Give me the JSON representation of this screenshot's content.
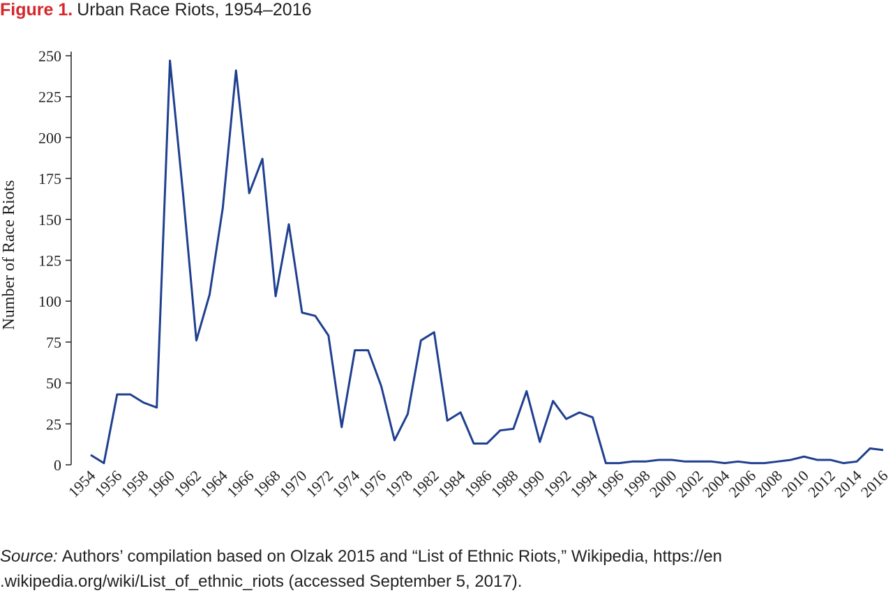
{
  "chart_data": {
    "type": "line",
    "title_label": "Figure 1.",
    "title": "Urban Race Riots, 1954–2016",
    "y_label": "Number of Race Riots",
    "source_label": "Source:",
    "source_lines": [
      "Authors’ compilation based on Olzak 2015 and “List of Ethnic Riots,” Wikipedia, https://en",
      ".wikipedia.org/wiki/List_of_ethnic_riots (accessed September 5, 2017)."
    ],
    "categories": [
      "1954",
      null,
      "1956",
      null,
      "1958",
      null,
      "1960",
      null,
      "1962",
      null,
      "1964",
      null,
      "1966",
      null,
      "1968",
      null,
      "1970",
      null,
      "1972",
      null,
      "1974",
      null,
      "1976",
      null,
      "1978",
      null,
      "1982",
      null,
      "1984",
      null,
      "1986",
      null,
      "1988",
      null,
      "1990",
      null,
      "1992",
      null,
      "1994",
      null,
      "1996",
      null,
      "1998",
      null,
      "2000",
      null,
      "2002",
      null,
      "2004",
      null,
      "2006",
      null,
      "2008",
      null,
      "2010",
      null,
      "2012",
      null,
      "2014",
      null,
      "2016"
    ],
    "series": [
      {
        "name": "Urban race riots",
        "color": "#1f3f8f",
        "values": [
          6,
          1,
          43,
          43,
          38,
          35,
          247,
          165,
          76,
          104,
          157,
          241,
          166,
          187,
          103,
          147,
          93,
          91,
          79,
          23,
          70,
          70,
          48,
          15,
          31,
          76,
          81,
          27,
          32,
          13,
          13,
          21,
          22,
          45,
          14,
          39,
          28,
          32,
          29,
          1,
          1,
          2,
          2,
          3,
          3,
          2,
          2,
          2,
          1,
          2,
          1,
          1,
          2,
          3,
          5,
          3,
          3,
          1,
          2,
          10,
          9
        ]
      }
    ],
    "ylim": [
      0,
      250
    ],
    "yticks": [
      0,
      25,
      50,
      75,
      100,
      125,
      150,
      175,
      200,
      225,
      250
    ]
  }
}
